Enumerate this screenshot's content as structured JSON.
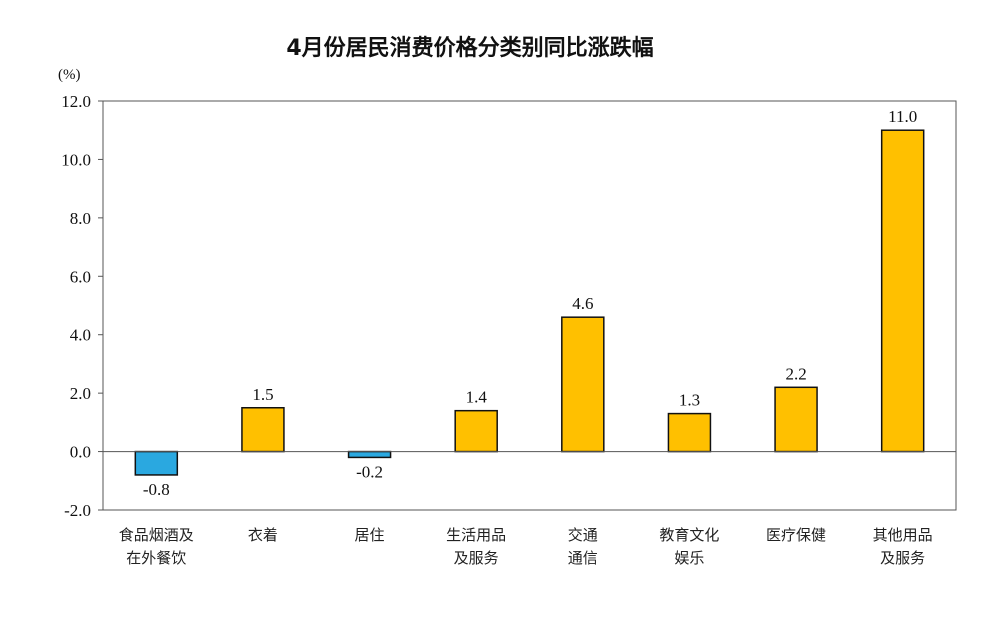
{
  "chart_data": {
    "type": "bar",
    "title": "4月份居民消费价格分类别同比涨跌幅",
    "unit": "(%)",
    "categories": [
      [
        "食品烟酒及",
        "在外餐饮"
      ],
      [
        "衣着"
      ],
      [
        "居住"
      ],
      [
        "生活用品",
        "及服务"
      ],
      [
        "交通",
        "通信"
      ],
      [
        "教育文化",
        "娱乐"
      ],
      [
        "医疗保健"
      ],
      [
        "其他用品",
        "及服务"
      ]
    ],
    "values": [
      -0.8,
      1.5,
      -0.2,
      1.4,
      4.6,
      1.3,
      2.2,
      11.0
    ],
    "data_labels": [
      "-0.8",
      "1.5",
      "-0.2",
      "1.4",
      "4.6",
      "1.3",
      "2.2",
      "11.0"
    ],
    "ylim": [
      -2.0,
      12.0
    ],
    "yticks": [
      -2.0,
      0.0,
      2.0,
      4.0,
      6.0,
      8.0,
      10.0,
      12.0
    ],
    "ytick_labels": [
      "-2.0",
      "0.0",
      "2.0",
      "4.0",
      "6.0",
      "8.0",
      "10.0",
      "12.0"
    ],
    "grid": false,
    "colors": {
      "positive": "#FFC000",
      "negative": "#2AA8E0",
      "edge": "#111111"
    }
  }
}
